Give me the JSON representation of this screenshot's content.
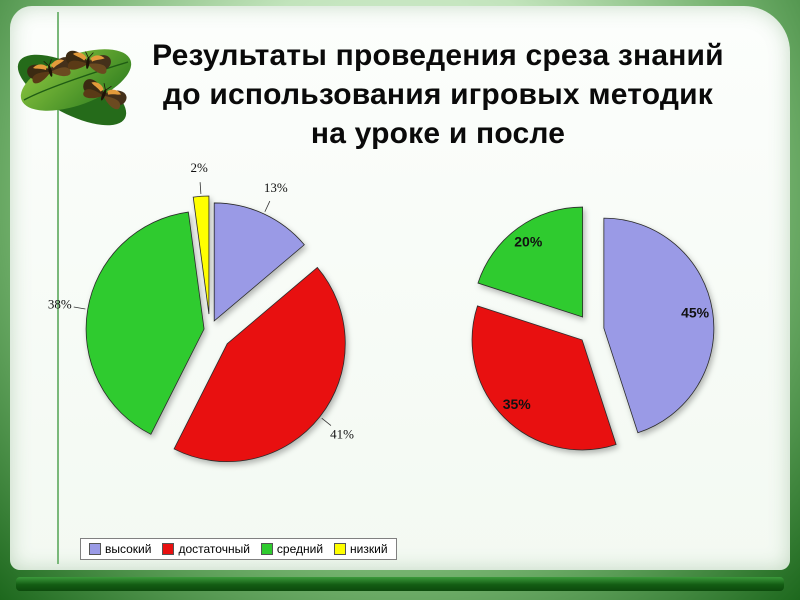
{
  "slide": {
    "title_lines": [
      "Результаты проведения среза знаний",
      "до использования игровых методик",
      "на уроке и после"
    ]
  },
  "legend": {
    "items": [
      {
        "label": "высокий",
        "color": "#9a9ae6"
      },
      {
        "label": "достаточный",
        "color": "#e81010"
      },
      {
        "label": "средний",
        "color": "#2fcb2f"
      },
      {
        "label": "низкий",
        "color": "#ffff00"
      }
    ]
  },
  "chart_data": [
    {
      "type": "pie",
      "position": "left",
      "label_position": "outside",
      "start_angle_deg": 0,
      "direction": "clockwise",
      "slices": [
        {
          "category": "высокий",
          "value": 13,
          "label": "13%",
          "color": "#9a9ae6",
          "explode": 10
        },
        {
          "category": "достаточный",
          "value": 41,
          "label": "41%",
          "color": "#e81010",
          "explode": 22
        },
        {
          "category": "средний",
          "value": 38,
          "label": "38%",
          "color": "#2fcb2f",
          "explode": 6
        },
        {
          "category": "низкий",
          "value": 2,
          "label": "2%",
          "color": "#ffff00",
          "explode": 16
        }
      ]
    },
    {
      "type": "pie",
      "position": "right",
      "label_position": "inside",
      "start_angle_deg": 0,
      "direction": "clockwise",
      "slices": [
        {
          "category": "высокий",
          "value": 45,
          "label": "45%",
          "color": "#9a9ae6",
          "explode": 12
        },
        {
          "category": "достаточный",
          "value": 35,
          "label": "35%",
          "color": "#e81010",
          "explode": 14
        },
        {
          "category": "средний",
          "value": 20,
          "label": "20%",
          "color": "#2fcb2f",
          "explode": 16
        }
      ]
    }
  ]
}
